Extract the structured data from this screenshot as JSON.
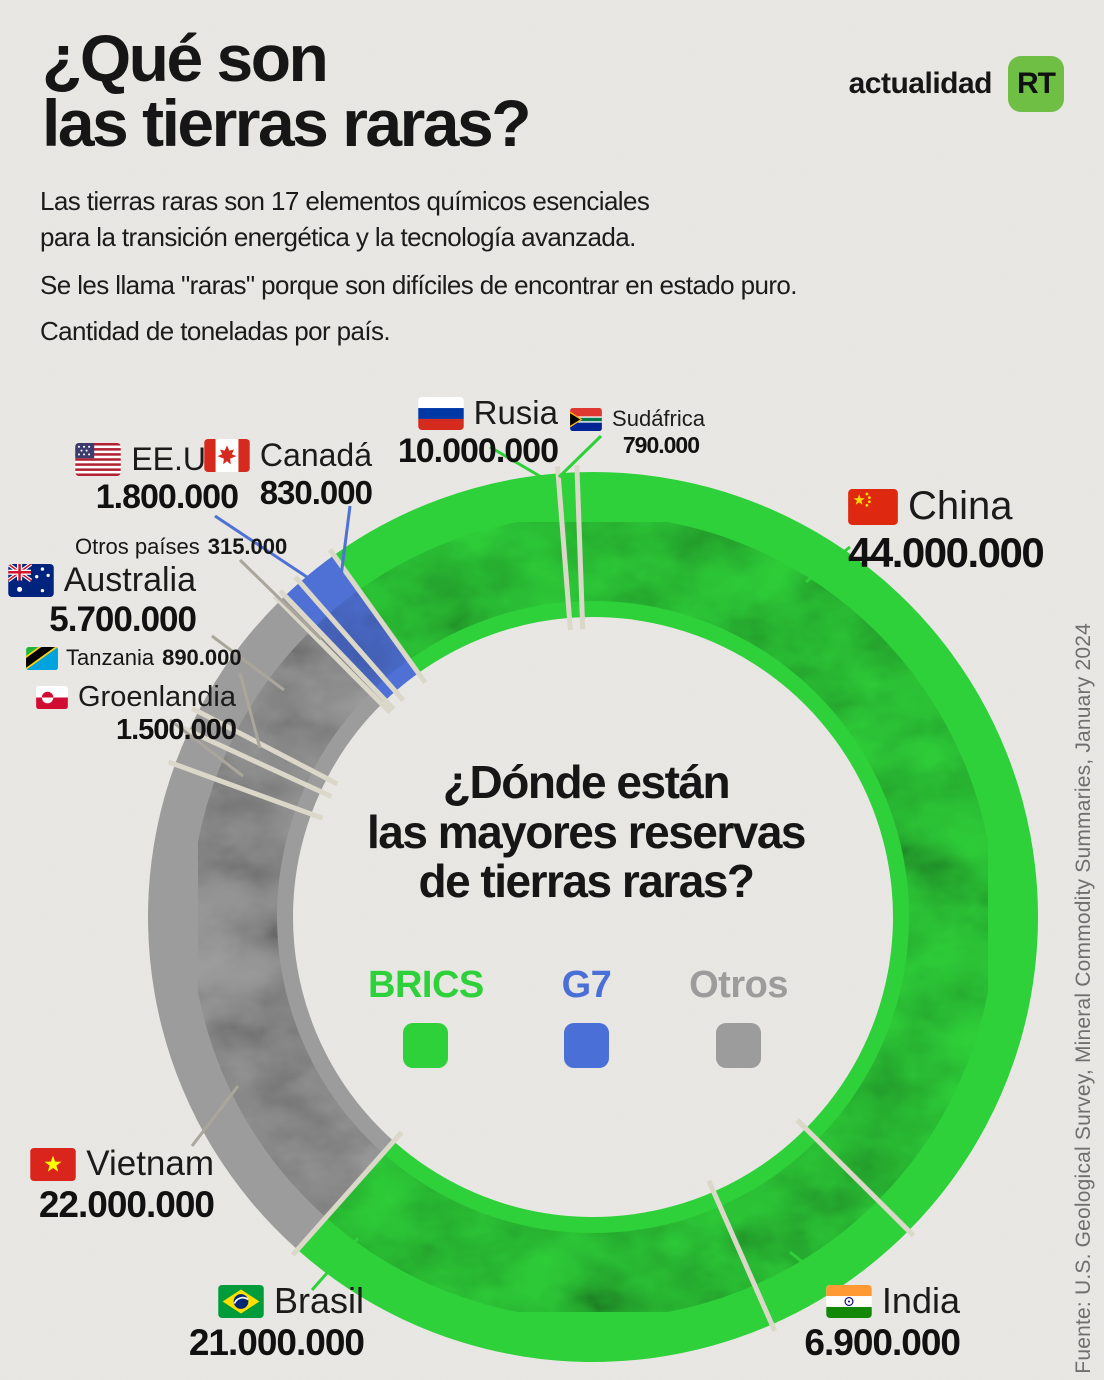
{
  "header": {
    "title_lines": [
      "¿Qué son",
      "las tierras raras?"
    ],
    "brand_word": "actualidad",
    "brand_logo": "RT",
    "intro": [
      "Las tierras raras son 17 elementos químicos esenciales",
      "para la transición energética y la tecnología avanzada.",
      "Se les llama \"raras\" porque son difíciles de encontrar en estado puro.",
      "Cantidad de toneladas por país."
    ]
  },
  "center_question": {
    "line1": "¿Dónde están",
    "line2": "las mayores reservas",
    "line3": "de tierras raras?"
  },
  "legend": [
    {
      "label": "BRICS",
      "color": "#2ed139"
    },
    {
      "label": "G7",
      "color": "#4a6fd6"
    },
    {
      "label": "Otros",
      "color": "#9c9c9c"
    }
  ],
  "source": "Fuente: U.S. Geological Survey, Mineral Commodity Summaries, January 2024",
  "chart_data": {
    "type": "pie",
    "variant": "donut",
    "title": "¿Dónde están las mayores reservas de tierras raras?",
    "units": "toneladas",
    "start_angle_deg": -4.5,
    "clockwise_from_top": true,
    "group_colors": {
      "BRICS": "#2ed139",
      "G7": "#4f71d5",
      "Otros": "#9c9c9c"
    },
    "segments": [
      {
        "name": "Sudáfrica",
        "value": 790000,
        "display": "790.000",
        "group": "BRICS"
      },
      {
        "name": "China",
        "value": 44000000,
        "display": "44.000.000",
        "group": "BRICS"
      },
      {
        "name": "India",
        "value": 6900000,
        "display": "6.900.000",
        "group": "BRICS"
      },
      {
        "name": "Brasil",
        "value": 21000000,
        "display": "21.000.000",
        "group": "BRICS"
      },
      {
        "name": "Vietnam",
        "value": 22000000,
        "display": "22.000.000",
        "group": "Otros"
      },
      {
        "name": "Groenlandia",
        "value": 1500000,
        "display": "1.500.000",
        "group": "Otros"
      },
      {
        "name": "Tanzania",
        "value": 890000,
        "display": "890.000",
        "group": "Otros"
      },
      {
        "name": "Australia",
        "value": 5700000,
        "display": "5.700.000",
        "group": "Otros"
      },
      {
        "name": "Otros países",
        "value": 315000,
        "display": "315.000",
        "group": "Otros"
      },
      {
        "name": "Canadá",
        "value": 830000,
        "display": "830.000",
        "group": "G7"
      },
      {
        "name": "EE.UU.",
        "value": 1800000,
        "display": "1.800.000",
        "group": "G7"
      },
      {
        "name": "Rusia",
        "value": 10000000,
        "display": "10.000.000",
        "group": "BRICS"
      }
    ]
  }
}
